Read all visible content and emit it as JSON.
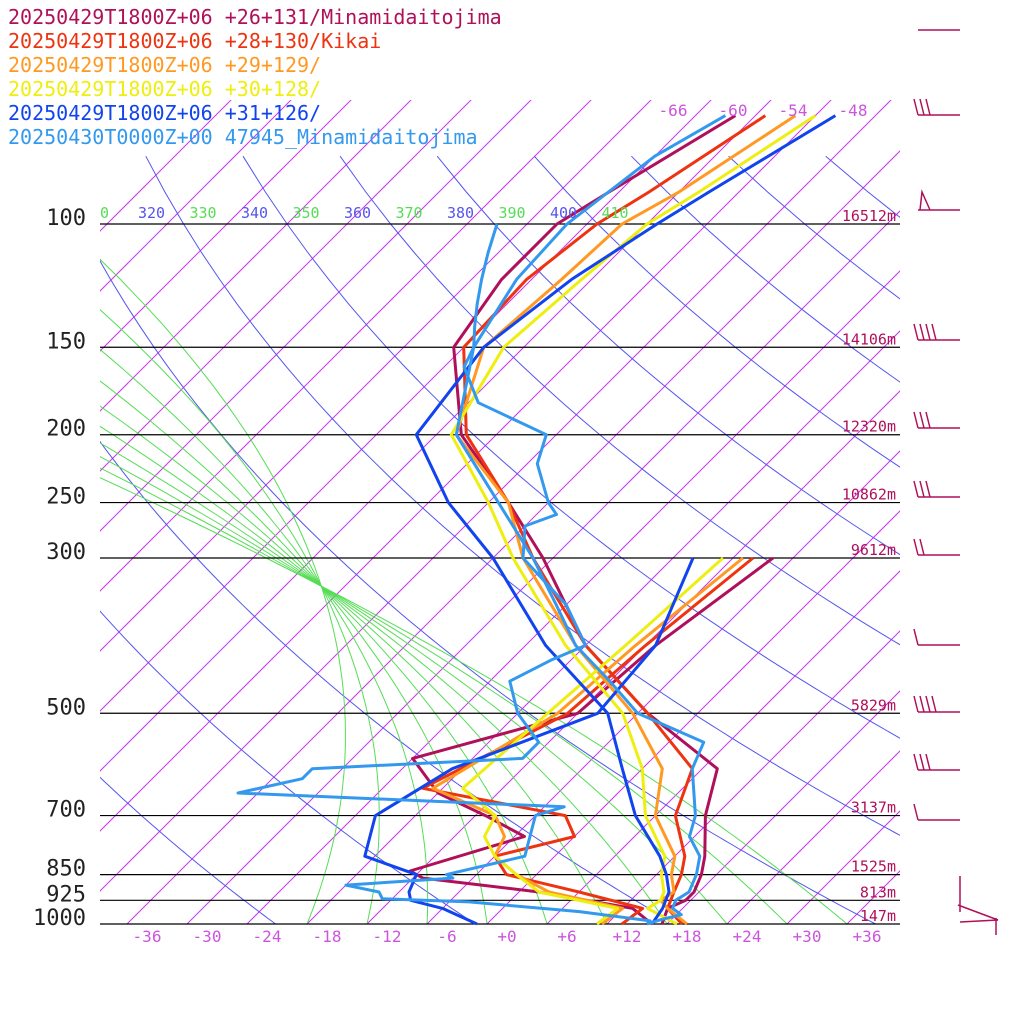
{
  "chart_data": {
    "type": "line",
    "title": "",
    "pressure_levels": [
      {
        "p": 100,
        "label": "100",
        "height": "16512m"
      },
      {
        "p": 150,
        "label": "150",
        "height": "14106m"
      },
      {
        "p": 200,
        "label": "200",
        "height": "12320m"
      },
      {
        "p": 250,
        "label": "250",
        "height": "10862m"
      },
      {
        "p": 300,
        "label": "300",
        "height": "9612m"
      },
      {
        "p": 500,
        "label": "500",
        "height": "5829m"
      },
      {
        "p": 700,
        "label": "700",
        "height": "3137m"
      },
      {
        "p": 850,
        "label": "850",
        "height": "1525m"
      },
      {
        "p": 925,
        "label": "925",
        "height": "813m"
      },
      {
        "p": 1000,
        "label": "1000",
        "height": "147m"
      }
    ],
    "temp_ticks": [
      "-36",
      "-30",
      "-24",
      "-18",
      "-12",
      "-6",
      "+0",
      "+6",
      "+12",
      "+18",
      "+24",
      "+30",
      "+36"
    ],
    "upper_temp_ticks": [
      "-66",
      "-60",
      "-54",
      "-48"
    ],
    "theta_labels": [
      {
        "v": "0",
        "color": "#55dd55"
      },
      {
        "v": "320",
        "color": "#5555ee"
      },
      {
        "v": "330",
        "color": "#55dd55"
      },
      {
        "v": "340",
        "color": "#5555ee"
      },
      {
        "v": "350",
        "color": "#55dd55"
      },
      {
        "v": "360",
        "color": "#5555ee"
      },
      {
        "v": "370",
        "color": "#55dd55"
      },
      {
        "v": "380",
        "color": "#5555ee"
      },
      {
        "v": "390",
        "color": "#55dd55"
      },
      {
        "v": "400",
        "color": "#5555ee"
      },
      {
        "v": "410",
        "color": "#55dd55"
      }
    ],
    "series": [
      {
        "name": "20250429T1800Z+06 +26+131/Minamidaitojima",
        "color": "#b0105a",
        "temp": [
          [
            1000,
            15.5
          ],
          [
            950,
            14.5
          ],
          [
            925,
            15.5
          ],
          [
            900,
            15.5
          ],
          [
            850,
            14.5
          ],
          [
            800,
            13
          ],
          [
            700,
            9
          ],
          [
            600,
            5.5
          ],
          [
            500,
            -7
          ],
          [
            400,
            -20
          ],
          [
            300,
            -33
          ],
          [
            250,
            -42
          ],
          [
            200,
            -53.5
          ],
          [
            150,
            -63
          ],
          [
            120,
            -65
          ],
          [
            100,
            -65
          ],
          [
            90,
            -63
          ],
          [
            70,
            -58
          ]
        ],
        "dew": [
          [
            1000,
            14.5
          ],
          [
            950,
            11
          ],
          [
            900,
            0
          ],
          [
            860,
            -13
          ],
          [
            840,
            -15
          ],
          [
            750,
            -7
          ],
          [
            700,
            -13
          ],
          [
            650,
            -20
          ],
          [
            580,
            -26
          ],
          [
            500,
            -14
          ],
          [
            400,
            -13
          ],
          [
            300,
            -10
          ]
        ]
      },
      {
        "name": "20250429T1800Z+06 +28+130/Kikai",
        "color": "#ee3311",
        "temp": [
          [
            1000,
            17.5
          ],
          [
            950,
            14.5
          ],
          [
            925,
            14
          ],
          [
            900,
            13.5
          ],
          [
            850,
            12.5
          ],
          [
            800,
            11
          ],
          [
            700,
            6
          ],
          [
            600,
            3
          ],
          [
            500,
            -7
          ],
          [
            400,
            -20
          ],
          [
            300,
            -34
          ],
          [
            250,
            -42
          ],
          [
            200,
            -53
          ],
          [
            150,
            -62
          ],
          [
            120,
            -62.5
          ],
          [
            100,
            -61
          ],
          [
            90,
            -59
          ],
          [
            70,
            -55
          ]
        ],
        "dew": [
          [
            1000,
            11.5
          ],
          [
            950,
            12
          ],
          [
            900,
            4
          ],
          [
            850,
            -5
          ],
          [
            800,
            -8
          ],
          [
            750,
            -2
          ],
          [
            700,
            -5
          ],
          [
            640,
            -22
          ],
          [
            500,
            -15
          ],
          [
            400,
            -14
          ],
          [
            300,
            -12
          ]
        ]
      },
      {
        "name": "20250429T1800Z+06 +29+129/",
        "color": "#ff9922",
        "temp": [
          [
            1000,
            18
          ],
          [
            950,
            14.5
          ],
          [
            925,
            13
          ],
          [
            900,
            13.5
          ],
          [
            850,
            11.5
          ],
          [
            800,
            10
          ],
          [
            700,
            4
          ],
          [
            600,
            0
          ],
          [
            500,
            -8.5
          ],
          [
            400,
            -21
          ],
          [
            300,
            -35
          ],
          [
            250,
            -42
          ],
          [
            200,
            -54
          ],
          [
            150,
            -60
          ],
          [
            120,
            -59
          ],
          [
            100,
            -58.5
          ],
          [
            90,
            -56
          ],
          [
            70,
            -52
          ]
        ],
        "dew": [
          [
            1000,
            9.5
          ],
          [
            950,
            10
          ],
          [
            900,
            1
          ],
          [
            850,
            -4
          ],
          [
            800,
            -8
          ],
          [
            750,
            -9
          ],
          [
            700,
            -12
          ],
          [
            640,
            -21
          ],
          [
            500,
            -16
          ],
          [
            400,
            -15
          ],
          [
            300,
            -13
          ]
        ]
      },
      {
        "name": "20250429T1800Z+06 +30+128/",
        "color": "#eeee11",
        "temp": [
          [
            1000,
            17
          ],
          [
            950,
            12.5
          ],
          [
            925,
            13
          ],
          [
            900,
            12.5
          ],
          [
            850,
            10.5
          ],
          [
            800,
            9
          ],
          [
            700,
            3
          ],
          [
            600,
            -2
          ],
          [
            500,
            -9.5
          ],
          [
            400,
            -22
          ],
          [
            300,
            -36
          ],
          [
            250,
            -44
          ],
          [
            200,
            -54.5
          ],
          [
            150,
            -58
          ],
          [
            120,
            -57
          ],
          [
            100,
            -56
          ],
          [
            90,
            -54
          ],
          [
            70,
            -50
          ]
        ],
        "dew": [
          [
            1000,
            9
          ],
          [
            950,
            9.5
          ],
          [
            900,
            0
          ],
          [
            850,
            -4
          ],
          [
            800,
            -8
          ],
          [
            750,
            -11
          ],
          [
            700,
            -12
          ],
          [
            640,
            -18
          ],
          [
            500,
            -17
          ],
          [
            400,
            -16
          ],
          [
            300,
            -15
          ]
        ]
      },
      {
        "name": "20250429T1800Z+06 +31+126/",
        "color": "#1144ee",
        "temp": [
          [
            1000,
            14.5
          ],
          [
            950,
            14
          ],
          [
            925,
            13.5
          ],
          [
            900,
            13
          ],
          [
            850,
            11
          ],
          [
            800,
            8.5
          ],
          [
            700,
            2
          ],
          [
            600,
            -4
          ],
          [
            500,
            -11
          ],
          [
            400,
            -24
          ],
          [
            300,
            -38
          ],
          [
            250,
            -48
          ],
          [
            200,
            -58
          ],
          [
            150,
            -60
          ],
          [
            120,
            -58
          ],
          [
            100,
            -55
          ],
          [
            90,
            -53
          ],
          [
            70,
            -48
          ]
        ],
        "dew": [
          [
            1000,
            -3
          ],
          [
            950,
            -8
          ],
          [
            925,
            -12
          ],
          [
            900,
            -13
          ],
          [
            850,
            -14
          ],
          [
            800,
            -21
          ],
          [
            700,
            -24
          ],
          [
            600,
            -21
          ],
          [
            500,
            -12
          ],
          [
            400,
            -13
          ],
          [
            300,
            -18
          ]
        ]
      },
      {
        "name": "20250430T0000Z+00 47945_Minamidaitojima",
        "color": "#3399ee",
        "temp": [
          [
            1000,
            14
          ],
          [
            985,
            15
          ],
          [
            970,
            16.5
          ],
          [
            950,
            15
          ],
          [
            925,
            14.5
          ],
          [
            900,
            15
          ],
          [
            850,
            14
          ],
          [
            800,
            12.5
          ],
          [
            750,
            9.5
          ],
          [
            700,
            8
          ],
          [
            600,
            3
          ],
          [
            550,
            1.5
          ],
          [
            500,
            -8
          ],
          [
            450,
            -14
          ],
          [
            400,
            -21
          ],
          [
            350,
            -27
          ],
          [
            300,
            -34
          ],
          [
            250,
            -43
          ],
          [
            200,
            -54
          ],
          [
            150,
            -61
          ],
          [
            120,
            -63.5
          ],
          [
            100,
            -64
          ],
          [
            80,
            -62
          ],
          [
            70,
            -59
          ]
        ],
        "dew": [
          [
            1000,
            14
          ],
          [
            990,
            14
          ],
          [
            960,
            6
          ],
          [
            930,
            -6
          ],
          [
            920,
            -15
          ],
          [
            900,
            -16
          ],
          [
            880,
            -20
          ],
          [
            860,
            -10
          ],
          [
            850,
            -11
          ],
          [
            800,
            -5
          ],
          [
            700,
            -8
          ],
          [
            680,
            -6
          ],
          [
            650,
            -40
          ],
          [
            620,
            -35
          ],
          [
            600,
            -35
          ],
          [
            580,
            -15
          ],
          [
            550,
            -15
          ],
          [
            500,
            -20
          ],
          [
            450,
            -24
          ],
          [
            420,
            -22
          ],
          [
            400,
            -20
          ],
          [
            350,
            -26
          ],
          [
            300,
            -35
          ],
          [
            270,
            -38
          ],
          [
            260,
            -36
          ],
          [
            250,
            -38
          ],
          [
            220,
            -43
          ],
          [
            200,
            -45
          ],
          [
            180,
            -55
          ],
          [
            160,
            -60
          ],
          [
            150,
            -61
          ],
          [
            140,
            -63
          ],
          [
            130,
            -65
          ],
          [
            120,
            -67
          ],
          [
            110,
            -69
          ],
          [
            100,
            -71
          ]
        ]
      }
    ],
    "winds": [
      {
        "p": 100,
        "label": "16512m"
      },
      {
        "p": 150,
        "label": "14106m"
      },
      {
        "p": 200,
        "label": "12320m"
      },
      {
        "p": 250,
        "label": "10862m"
      },
      {
        "p": 300,
        "label": "9612m"
      }
    ]
  },
  "colors": {
    "isobar": "#000000",
    "isotherm": "#cc33ee",
    "dry_adiabat": "#5555ee",
    "moist_adiabat": "#55dd55",
    "height_label": "#b0105a",
    "wind_barb": "#b0105a"
  }
}
